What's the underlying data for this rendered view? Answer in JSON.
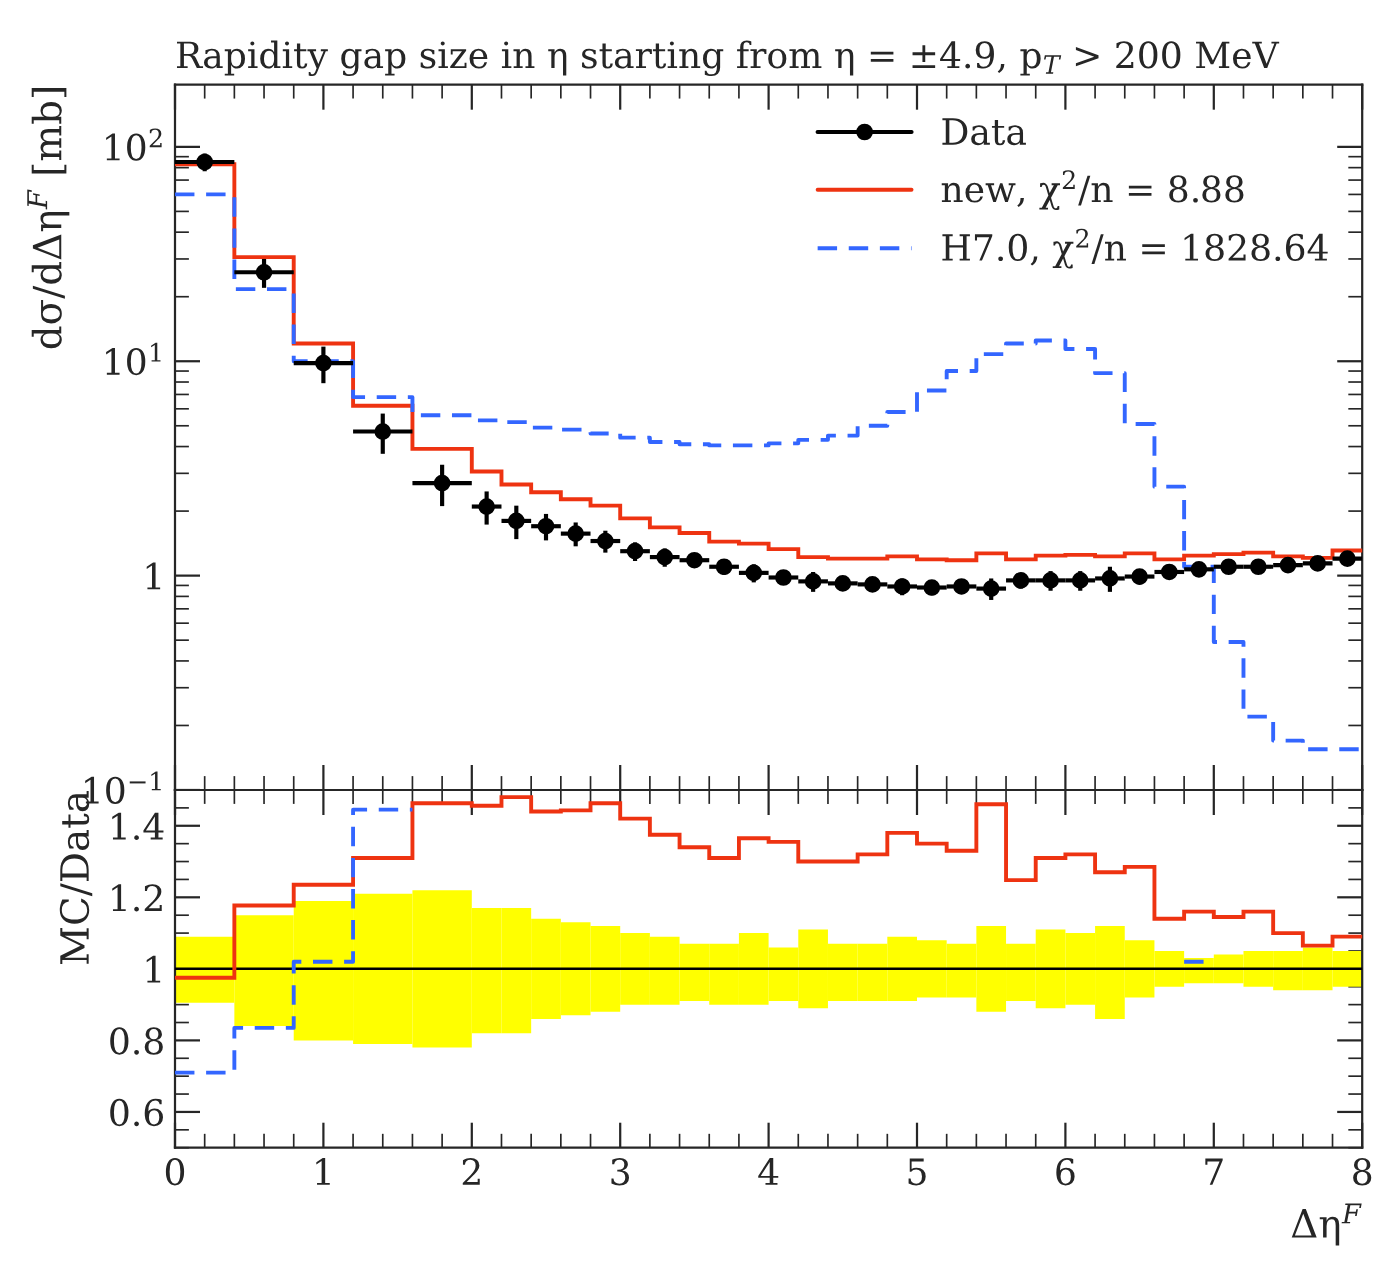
{
  "chart_data": [
    {
      "type": "step",
      "title": "Rapidity gap size in η starting from η = ±4.9, p$_{T}$ > 200 MeV",
      "ylabel": "dσ/dΔη$^{F}$ [mb]",
      "log": "y",
      "xlim": [
        0,
        8
      ],
      "xticks": [
        0,
        1,
        2,
        3,
        4,
        5,
        6,
        7,
        8
      ],
      "ylim": [
        0.1,
        195
      ],
      "yticks": [
        {
          "value": 0.1,
          "label": "10$^{−1}$"
        },
        1,
        {
          "value": 10,
          "label": "10$^{1}$"
        },
        {
          "value": 100,
          "label": "10$^{2}$"
        }
      ],
      "tick_labels": "y",
      "legend": "top right",
      "series": [
        {
          "name": "Data",
          "type": "scatter",
          "color": "#000000",
          "marker": "circle",
          "x": [
            0.2,
            0.6,
            1.0,
            1.4,
            1.8,
            2.1,
            2.3,
            2.5,
            2.7,
            2.9,
            3.1,
            3.3,
            3.5,
            3.7,
            3.9,
            4.1,
            4.3,
            4.5,
            4.7,
            4.9,
            5.1,
            5.3,
            5.5,
            5.7,
            5.9,
            6.1,
            6.3,
            6.5,
            6.7,
            6.9,
            7.1,
            7.3,
            7.5,
            7.7,
            7.9
          ],
          "values": [
            85,
            26,
            9.8,
            4.7,
            2.7,
            2.1,
            1.8,
            1.7,
            1.57,
            1.45,
            1.3,
            1.22,
            1.18,
            1.1,
            1.03,
            0.98,
            0.94,
            0.92,
            0.91,
            0.89,
            0.88,
            0.89,
            0.87,
            0.95,
            0.95,
            0.95,
            0.97,
            0.99,
            1.04,
            1.07,
            1.1,
            1.1,
            1.12,
            1.14,
            1.2
          ],
          "errors": [
            8.1,
            4.0,
            1.9,
            1.0,
            0.59,
            0.37,
            0.32,
            0.24,
            0.2,
            0.17,
            0.13,
            0.12,
            0.09,
            0.09,
            0.1,
            0.07,
            0.1,
            0.07,
            0.07,
            0.08,
            0.07,
            0.07,
            0.1,
            0.08,
            0.1,
            0.1,
            0.13,
            0.08,
            0.05,
            0.04,
            0.04,
            0.06,
            0.06,
            0.07,
            0.06
          ],
          "xerrors": [
            0.2,
            0.2,
            0.2,
            0.2,
            0.2,
            0.1,
            0.1,
            0.1,
            0.1,
            0.1,
            0.1,
            0.1,
            0.1,
            0.1,
            0.1,
            0.1,
            0.1,
            0.1,
            0.1,
            0.1,
            0.1,
            0.1,
            0.1,
            0.1,
            0.1,
            0.1,
            0.1,
            0.1,
            0.1,
            0.1,
            0.1,
            0.1,
            0.1,
            0.1,
            0.1
          ]
        },
        {
          "name": "new, χ$^{2}$/n = 8.88",
          "color": "#ee3311",
          "line_style": "solid",
          "x": [
            0,
            0.4,
            0.8,
            1.2,
            1.6,
            2.0,
            2.2,
            2.4,
            2.6,
            2.8,
            3.0,
            3.2,
            3.4,
            3.6,
            3.8,
            4.0,
            4.2,
            4.4,
            4.6,
            4.8,
            5.0,
            5.2,
            5.4,
            5.6,
            5.8,
            6.0,
            6.2,
            6.4,
            6.6,
            6.8,
            7.0,
            7.2,
            7.4,
            7.6,
            7.8,
            8.0
          ],
          "values": [
            83,
            30.6,
            12.1,
            6.2,
            3.9,
            3.06,
            2.66,
            2.45,
            2.27,
            2.12,
            1.85,
            1.68,
            1.58,
            1.44,
            1.41,
            1.33,
            1.22,
            1.2,
            1.2,
            1.23,
            1.19,
            1.18,
            1.27,
            1.19,
            1.24,
            1.25,
            1.23,
            1.27,
            1.19,
            1.24,
            1.26,
            1.28,
            1.23,
            1.21,
            1.31,
            1.31
          ]
        },
        {
          "name": "H7.0, χ$^{2}$/n = 1828.64",
          "color": "#3366ff",
          "line_style": "dashed",
          "x": [
            0,
            0.4,
            0.8,
            1.2,
            1.6,
            2.0,
            2.2,
            2.4,
            2.6,
            2.8,
            3.0,
            3.2,
            3.4,
            3.6,
            3.8,
            4.0,
            4.2,
            4.4,
            4.6,
            4.8,
            5.0,
            5.2,
            5.4,
            5.6,
            5.8,
            6.0,
            6.2,
            6.4,
            6.6,
            6.8,
            7.0,
            7.2,
            7.4,
            7.6,
            7.8,
            8.0
          ],
          "values": [
            60,
            21.7,
            10,
            6.8,
            5.6,
            5.3,
            5.2,
            4.9,
            4.8,
            4.6,
            4.4,
            4.2,
            4.1,
            4.05,
            4.05,
            4.14,
            4.3,
            4.5,
            5.0,
            5.8,
            7.3,
            9.0,
            10.8,
            12.1,
            12.5,
            11.4,
            8.8,
            5.1,
            2.6,
            1.1,
            0.49,
            0.22,
            0.17,
            0.155,
            0.155,
            0.155
          ]
        }
      ]
    },
    {
      "type": "step",
      "xlabel": "Δη$^{F}$",
      "ylabel": "MC/Data",
      "xlim": [
        0,
        8
      ],
      "xticks": [
        0,
        1,
        2,
        3,
        4,
        5,
        6,
        7,
        8
      ],
      "ylim": [
        0.5,
        1.5
      ],
      "yticks": [
        0.6,
        0.8,
        1,
        1.2,
        1.4
      ],
      "series": [
        {
          "color": "#000000",
          "colors": [
            "#ffff00",
            "#ffff00",
            "#ffff00",
            "#ffff00",
            "#ffff00",
            "#ffff00",
            "#ffff00",
            "#ffff00",
            "#ffff00",
            "#ffff00",
            "#ffff00",
            "#ffff00",
            "#ffff00",
            "#ffff00",
            "#ffff00",
            "#ffff00",
            "#ffff00",
            "#ffff00",
            "#ffff00",
            "#ffff00",
            "#ffff00",
            "#ffff00",
            "#ffff00",
            "#ffff00",
            "#ffff00",
            "#ffff00",
            "#ffff00",
            "#ffff00",
            "#ffff00",
            "#ffff00",
            "#ffff00",
            "#ffff00",
            "#ffff00",
            "#ffff00",
            "#ffff00",
            "#ffff00"
          ],
          "x": [
            0,
            0.4,
            0.8,
            1.2,
            1.6,
            2.0,
            2.2,
            2.4,
            2.6,
            2.8,
            3.0,
            3.2,
            3.4,
            3.6,
            3.8,
            4.0,
            4.2,
            4.4,
            4.6,
            4.8,
            5.0,
            5.2,
            5.4,
            5.6,
            5.8,
            6.0,
            6.2,
            6.4,
            6.6,
            6.8,
            7.0,
            7.2,
            7.4,
            7.6,
            7.8,
            8.0
          ],
          "values": [
            1,
            1,
            1,
            1,
            1,
            1,
            1,
            1,
            1,
            1,
            1,
            1,
            1,
            1,
            1,
            1,
            1,
            1,
            1,
            1,
            1,
            1,
            1,
            1,
            1,
            1,
            1,
            1,
            1,
            1,
            1,
            1,
            1,
            1,
            1,
            1
          ],
          "lower": [
            0.905,
            0.84,
            0.8,
            0.79,
            0.78,
            0.82,
            0.82,
            0.86,
            0.87,
            0.88,
            0.9,
            0.9,
            0.91,
            0.9,
            0.9,
            0.91,
            0.89,
            0.91,
            0.91,
            0.91,
            0.92,
            0.92,
            0.88,
            0.91,
            0.89,
            0.9,
            0.86,
            0.92,
            0.95,
            0.96,
            0.96,
            0.95,
            0.94,
            0.94,
            0.95,
            0.95
          ],
          "upper": [
            1.09,
            1.15,
            1.19,
            1.21,
            1.22,
            1.17,
            1.17,
            1.14,
            1.13,
            1.12,
            1.1,
            1.09,
            1.07,
            1.07,
            1.1,
            1.06,
            1.11,
            1.07,
            1.07,
            1.09,
            1.08,
            1.07,
            1.12,
            1.07,
            1.11,
            1.1,
            1.12,
            1.08,
            1.05,
            1.03,
            1.04,
            1.05,
            1.05,
            1.06,
            1.05,
            1.05
          ]
        },
        {
          "color": "#ee3311",
          "line_style": "solid",
          "x": [
            0,
            0.4,
            0.8,
            1.2,
            1.6,
            2.0,
            2.2,
            2.4,
            2.6,
            2.8,
            3.0,
            3.2,
            3.4,
            3.6,
            3.8,
            4.0,
            4.2,
            4.4,
            4.6,
            4.8,
            5.0,
            5.2,
            5.4,
            5.6,
            5.8,
            6.0,
            6.2,
            6.4,
            6.6,
            6.8,
            7.0,
            7.2,
            7.4,
            7.6,
            7.8,
            8.0
          ],
          "values": [
            0.975,
            1.177,
            1.235,
            1.31,
            1.463,
            1.456,
            1.48,
            1.44,
            1.443,
            1.463,
            1.42,
            1.375,
            1.34,
            1.31,
            1.365,
            1.355,
            1.3,
            1.3,
            1.32,
            1.38,
            1.35,
            1.33,
            1.46,
            1.248,
            1.31,
            1.32,
            1.27,
            1.285,
            1.14,
            1.16,
            1.145,
            1.16,
            1.1,
            1.065,
            1.09,
            1.09
          ]
        },
        {
          "color": "#3366ff",
          "line_style": "dashed",
          "x": [
            0,
            0.4,
            0.8,
            1.2,
            1.6
          ],
          "values": [
            0.71,
            0.835,
            1.02,
            1.445,
            1.445
          ]
        },
        {
          "color": "#3366ff",
          "line_style": "dashed",
          "x": [
            6.8,
            7.0
          ],
          "values": [
            1.02,
            1.02
          ]
        }
      ]
    }
  ]
}
